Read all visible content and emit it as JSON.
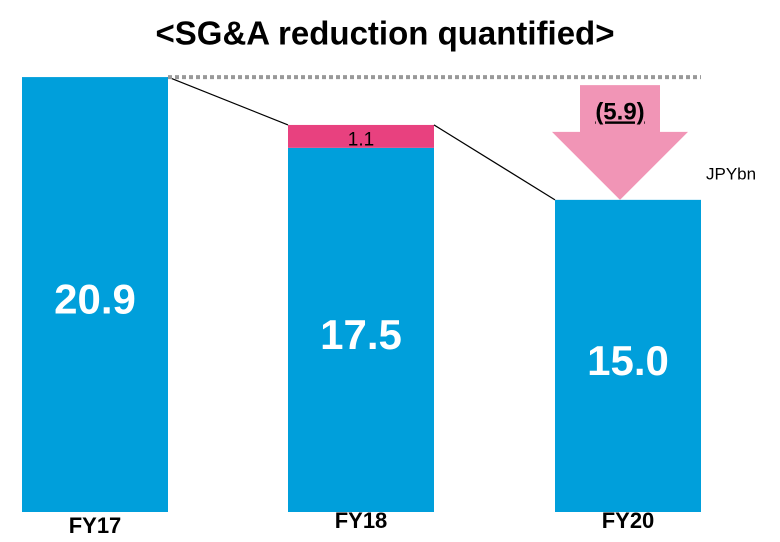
{
  "chart_data": {
    "type": "stacked_bar",
    "title": "<SG&A reduction quantified>",
    "categories": [
      "FY17",
      "FY18",
      "FY20"
    ],
    "series": [
      {
        "color": "#009fdb",
        "values": [
          20.9,
          17.5,
          15.0
        ],
        "value_labels": [
          "20.9",
          "17.5",
          "15.0"
        ]
      },
      {
        "color": "#e8417f",
        "values": [
          null,
          1.1,
          null
        ]
      }
    ],
    "ylim": [
      0,
      21
    ],
    "reduction": {
      "value": 5.9,
      "label": "(5.9)",
      "color": "#f195b6"
    },
    "unit": "JPYbn"
  }
}
